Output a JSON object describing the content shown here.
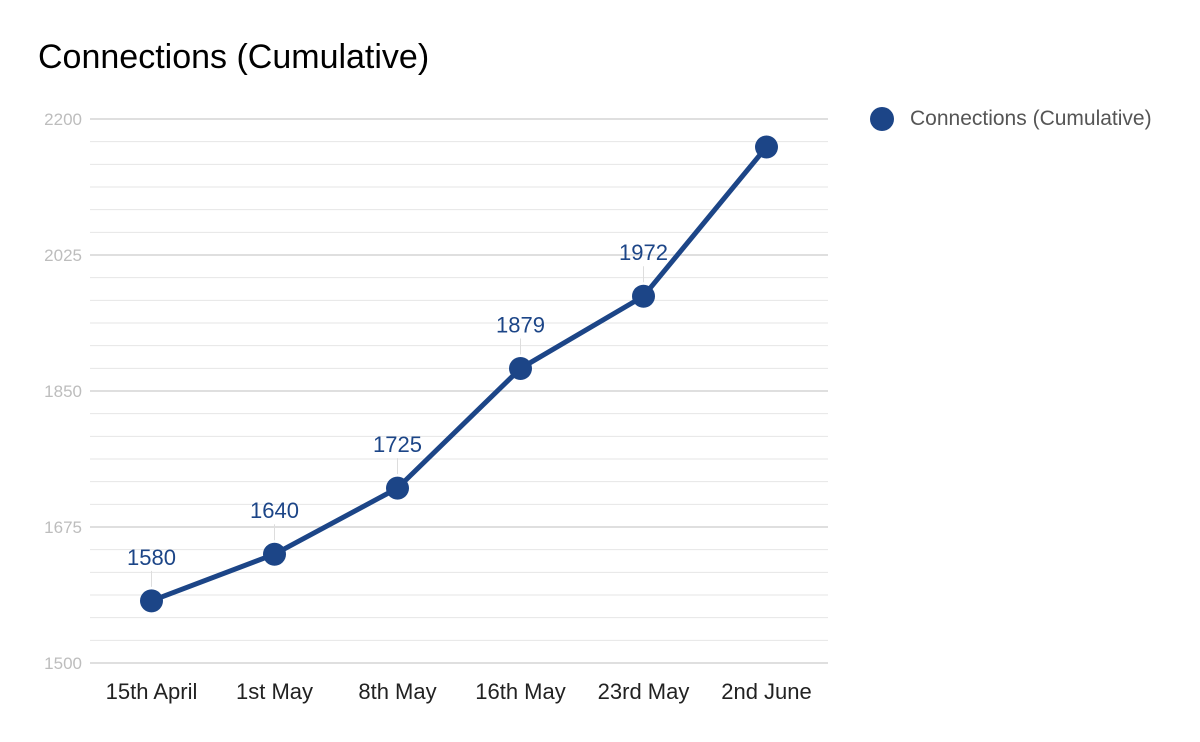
{
  "chart_data": {
    "type": "line",
    "title": "Connections (Cumulative)",
    "xlabel": "",
    "ylabel": "",
    "categories": [
      "15th April",
      "1st May",
      "8th May",
      "16th May",
      "23rd May",
      "2nd June"
    ],
    "series": [
      {
        "name": "Connections (Cumulative)",
        "values": [
          1580,
          1640,
          1725,
          1879,
          1972,
          2164
        ],
        "data_labels": [
          "1580",
          "1640",
          "1725",
          "1879",
          "1972",
          ""
        ],
        "color": "#1c4587"
      }
    ],
    "ylim": [
      1500,
      2200
    ],
    "yticks": [
      1500,
      1675,
      1850,
      2025,
      2200
    ],
    "minor_gridlines_per_interval": 5,
    "grid": true,
    "legend": "right"
  },
  "colors": {
    "series": "#1c4587",
    "major_grid": "#cccccc",
    "minor_grid": "#e6e6e6",
    "tick_label": "#bdbdbd",
    "category_label": "#222222"
  }
}
